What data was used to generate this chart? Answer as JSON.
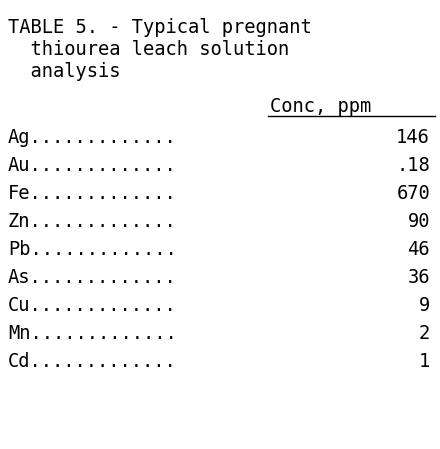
{
  "title_line1": "TABLE 5. - Typical pregnant",
  "title_line2": "  thiourea leach solution",
  "title_line3": "  analysis",
  "col_header": "Conc, ppm",
  "rows": [
    {
      "label": "Ag.............",
      "value": "146"
    },
    {
      "label": "Au.............",
      "value": ".18"
    },
    {
      "label": "Fe.............",
      "value": "670"
    },
    {
      "label": "Zn.............",
      "value": "90"
    },
    {
      "label": "Pb.............",
      "value": "46"
    },
    {
      "label": "As.............",
      "value": "36"
    },
    {
      "label": "Cu.............",
      "value": "9"
    },
    {
      "label": "Mn.............",
      "value": "2"
    },
    {
      "label": "Cd.............",
      "value": "1"
    }
  ],
  "bg_color": "#ffffff",
  "text_color": "#000000",
  "title_fontsize": 13.5,
  "data_fontsize": 13.5,
  "fig_width": 4.4,
  "fig_height": 4.49,
  "dpi": 100
}
